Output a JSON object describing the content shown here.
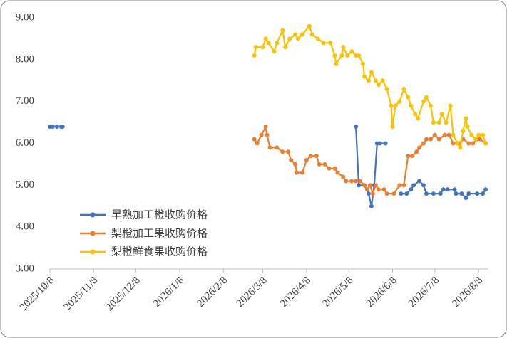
{
  "chart_data": {
    "type": "line",
    "xlim": [
      "2025/10/8",
      "2026/8/15"
    ],
    "xticks": [
      "2025/10/8",
      "2025/11/8",
      "2025/12/8",
      "2026/1/8",
      "2026/2/8",
      "2026/3/8",
      "2026/4/8",
      "2026/5/8",
      "2026/6/8",
      "2026/7/8",
      "2026/8/8"
    ],
    "ylim": [
      3,
      9
    ],
    "yticks": [
      {
        "value": 3,
        "label": "3.00"
      },
      {
        "value": 4,
        "label": "4.00"
      },
      {
        "value": 5,
        "label": "5.00"
      },
      {
        "value": 6,
        "label": "6.00"
      },
      {
        "value": 7,
        "label": "7.00"
      },
      {
        "value": 8,
        "label": "8.00"
      },
      {
        "value": 9,
        "label": "9.00"
      }
    ],
    "grid": false,
    "legend_position": "center left",
    "series": [
      {
        "name": "早熟加工橙收购价格",
        "color": "#4472c4",
        "x": [
          "2025/10/8",
          "2025/10/10",
          "2025/10/13",
          "2025/10/16",
          "2025/10/17",
          null,
          "2026/5/13",
          "2026/5/15",
          "2026/5/19",
          "2026/5/22",
          "2026/5/24",
          "2026/5/26",
          "2026/5/28",
          "2026/5/30",
          "2026/6/3",
          null,
          "2026/6/14",
          "2026/6/18",
          "2026/6/21",
          "2026/6/23",
          "2026/6/27",
          "2026/6/30",
          "2026/7/2",
          "2026/7/7",
          "2026/7/12",
          "2026/7/14",
          "2026/7/17",
          "2026/7/22",
          "2026/7/23",
          "2026/7/27",
          "2026/7/30",
          "2026/8/1",
          "2026/8/7",
          "2026/8/11",
          "2026/8/13"
        ],
        "values": [
          6.4,
          6.4,
          6.4,
          6.4,
          6.4,
          null,
          6.4,
          5.0,
          5.0,
          4.8,
          4.5,
          5.0,
          6.0,
          6.0,
          6.0,
          null,
          4.8,
          4.8,
          4.9,
          5.0,
          5.1,
          5.0,
          4.8,
          4.8,
          4.8,
          4.9,
          4.9,
          4.9,
          4.8,
          4.8,
          4.7,
          4.8,
          4.8,
          4.8,
          4.9
        ]
      },
      {
        "name": "梨橙加工果收购价格",
        "color": "#ed7d31",
        "x": [
          "2026/3/2",
          "2026/3/4",
          "2026/3/7",
          "2026/3/10",
          "2026/3/11",
          "2026/3/13",
          "2026/3/18",
          "2026/3/22",
          "2026/3/26",
          "2026/3/28",
          "2026/3/31",
          "2026/4/1",
          "2026/4/5",
          "2026/4/8",
          "2026/4/11",
          "2026/4/15",
          "2026/4/17",
          "2026/4/21",
          "2026/4/24",
          "2026/4/28",
          "2026/4/30",
          "2026/5/4",
          "2026/5/6",
          "2026/5/10",
          "2026/5/13",
          "2026/5/16",
          "2026/5/19",
          "2026/5/21",
          "2026/5/23",
          "2026/5/25",
          "2026/5/27",
          "2026/5/29",
          "2026/6/2",
          "2026/6/4",
          "2026/6/9",
          "2026/6/13",
          "2026/6/16",
          "2026/6/19",
          "2026/6/22",
          "2026/6/25",
          "2026/6/27",
          "2026/6/30",
          "2026/7/2",
          "2026/7/5",
          "2026/7/8",
          "2026/7/11",
          "2026/7/15",
          "2026/7/18",
          "2026/7/21",
          "2026/7/25",
          "2026/7/28",
          "2026/8/1",
          "2026/8/4",
          "2026/8/7",
          "2026/8/9",
          "2026/8/13"
        ],
        "values": [
          6.1,
          6.0,
          6.2,
          6.4,
          6.2,
          5.9,
          5.9,
          5.8,
          5.8,
          5.6,
          5.5,
          5.3,
          5.3,
          5.6,
          5.7,
          5.7,
          5.5,
          5.5,
          5.4,
          5.4,
          5.3,
          5.2,
          5.1,
          5.1,
          5.1,
          5.1,
          5.0,
          4.9,
          5.0,
          4.8,
          5.0,
          4.9,
          4.9,
          4.8,
          4.8,
          5.0,
          5.0,
          5.7,
          5.7,
          5.8,
          5.9,
          6.0,
          6.1,
          6.1,
          6.2,
          6.1,
          6.2,
          6.2,
          6.0,
          6.0,
          6.1,
          6.0,
          6.0,
          6.1,
          6.1,
          6.0
        ]
      },
      {
        "name": "梨橙鲜食果收购价格",
        "color": "#ffc000",
        "x": [
          "2026/3/2",
          "2026/3/3",
          "2026/3/8",
          "2026/3/10",
          "2026/3/12",
          "2026/3/16",
          "2026/3/18",
          "2026/3/22",
          "2026/3/24",
          "2026/3/27",
          "2026/3/31",
          "2026/4/2",
          "2026/4/5",
          "2026/4/10",
          "2026/4/12",
          "2026/4/16",
          "2026/4/20",
          "2026/4/25",
          "2026/4/28",
          "2026/4/29",
          "2026/5/3",
          "2026/5/4",
          "2026/5/7",
          "2026/5/10",
          "2026/5/13",
          "2026/5/15",
          "2026/5/18",
          "2026/5/19",
          "2026/5/22",
          "2026/5/24",
          "2026/5/27",
          "2026/5/29",
          "2026/6/1",
          "2026/6/4",
          "2026/6/7",
          "2026/6/8",
          "2026/6/10",
          "2026/6/13",
          "2026/6/16",
          "2026/6/19",
          "2026/6/21",
          "2026/6/24",
          "2026/6/26",
          "2026/6/30",
          "2026/7/2",
          "2026/7/5",
          "2026/7/7",
          "2026/7/11",
          "2026/7/13",
          "2026/7/16",
          "2026/7/19",
          "2026/7/21",
          "2026/7/24",
          "2026/7/26",
          "2026/7/28",
          "2026/7/30",
          "2026/7/31",
          "2026/8/3",
          "2026/8/6",
          "2026/8/8",
          "2026/8/11",
          "2026/8/13"
        ],
        "values": [
          8.1,
          8.3,
          8.3,
          8.5,
          8.4,
          8.2,
          8.4,
          8.7,
          8.3,
          8.5,
          8.6,
          8.5,
          8.6,
          8.8,
          8.6,
          8.5,
          8.4,
          8.4,
          8.1,
          7.9,
          8.1,
          8.3,
          8.1,
          8.2,
          8.1,
          8.1,
          7.9,
          7.6,
          7.5,
          7.7,
          7.5,
          7.4,
          7.5,
          7.3,
          6.9,
          6.4,
          6.9,
          7.0,
          7.3,
          7.1,
          6.9,
          6.7,
          6.6,
          7.0,
          7.1,
          6.9,
          6.5,
          6.5,
          6.7,
          6.5,
          6.9,
          6.2,
          6.0,
          5.9,
          6.3,
          6.6,
          6.4,
          6.2,
          6.1,
          6.2,
          6.2,
          6.0
        ]
      }
    ]
  }
}
